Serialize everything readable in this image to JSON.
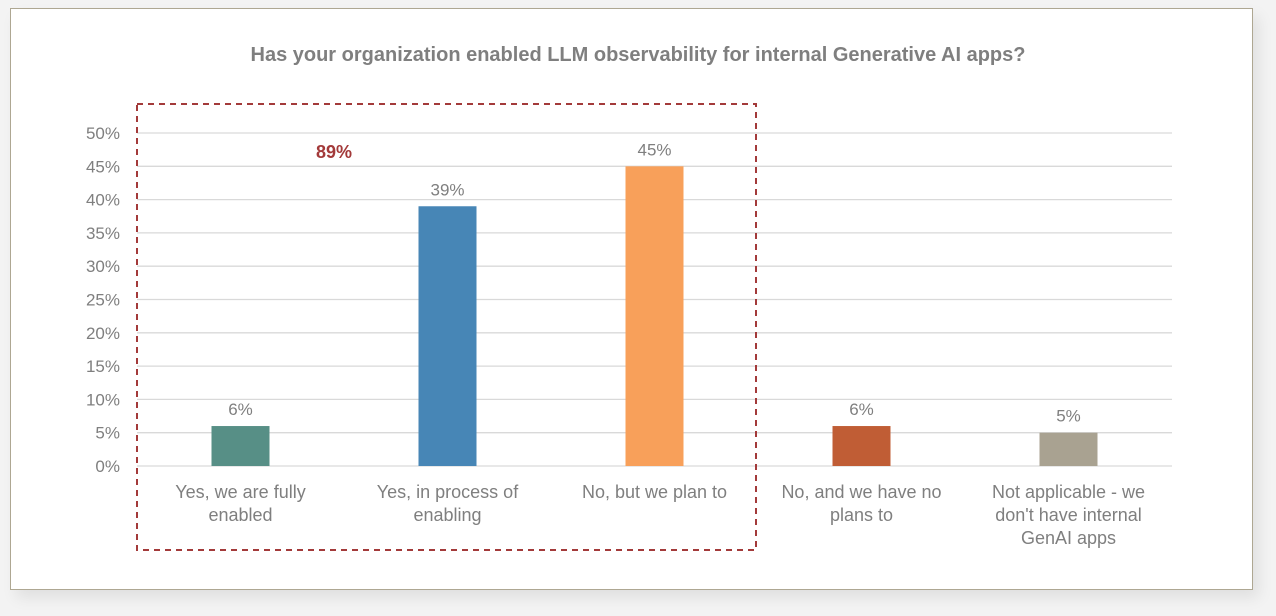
{
  "chart_data": {
    "type": "bar",
    "title": "Has your organization enabled LLM observability for internal Generative AI apps?",
    "xlabel": "",
    "ylabel": "",
    "ylim": [
      0,
      0.5
    ],
    "yticks": [
      "0%",
      "5%",
      "10%",
      "15%",
      "20%",
      "25%",
      "30%",
      "35%",
      "40%",
      "45%",
      "50%"
    ],
    "grid": true,
    "categories": [
      [
        "Yes, we are fully",
        "enabled"
      ],
      [
        "Yes, in process of",
        "enabling"
      ],
      [
        "No, but we plan to"
      ],
      [
        "No, and we have no",
        "plans to"
      ],
      [
        "Not applicable - we",
        "don't have internal",
        "GenAI apps"
      ]
    ],
    "values": [
      0.06,
      0.39,
      0.45,
      0.06,
      0.05
    ],
    "data_labels": [
      "6%",
      "39%",
      "45%",
      "6%",
      "5%"
    ],
    "colors": [
      "#578f86",
      "#4786b6",
      "#f8a05a",
      "#c05d35",
      "#a9a291"
    ],
    "highlight": {
      "label": "89%",
      "groups": [
        0,
        1,
        2
      ],
      "color": "#a33a3a"
    }
  }
}
